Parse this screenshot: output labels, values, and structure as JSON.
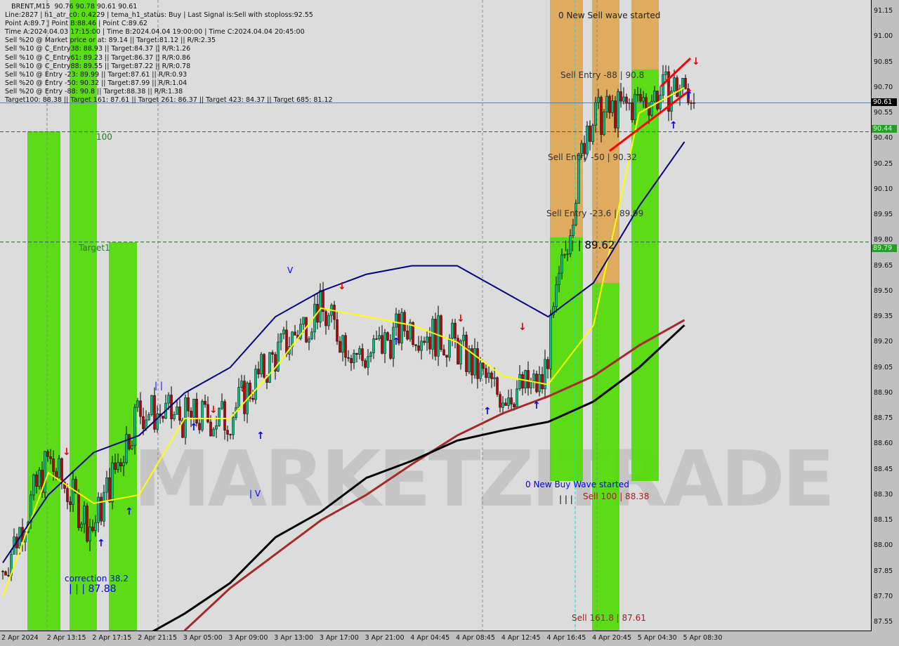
{
  "header": {
    "symbol": "BRENT,M15",
    "ohlc": "90.76 90.78 90.61 90.61"
  },
  "info_lines": [
    "Line:2827 | h1_atr_c0: 0.4229 | tema_h1_status: Buy | Last Signal is:Sell with stoploss:92.55",
    "Point A:89.7 | Point B:88.46 | Point C:89.62",
    "Time A:2024.04.03 17:15:00 | Time B:2024.04.04 19:00:00 | Time C:2024.04.04 20:45:00",
    "Sell %20 @ Market price or at: 89.14 || Target:81.12 || R/R:2.35",
    "Sell %10 @ C_Entry38: 88.93 || Target:84.37 || R/R:1.26",
    "Sell %10 @ C_Entry61: 89.23 || Target:86.37 || R/R:0.86",
    "Sell %10 @ C_Entry88: 89.55 || Target:87.22 || R/R:0.78",
    "Sell %10 @ Entry -23: 89.99 || Target:87.61 || R/R:0.93",
    "Sell %20 @ Entry -50: 90.32 || Target:87.99 || R/R:1.04",
    "Sell %20 @ Entry -88: 90.8 || Target:88.38 || R/R:1.38",
    "Target100: 88.38 || Target 161: 87.61 || Target 261: 86.37 || Target 423: 84.37 || Target 685: 81.12"
  ],
  "annotations": {
    "new_sell": "0 New Sell wave started",
    "sell_entry_88": "Sell Entry -88 | 90.8",
    "sell_entry_50": "Sell Entry -50 | 90.32",
    "sell_entry_23": "Sell Entry -23.6 | 89.99",
    "point_c": "| | | 89.62",
    "new_buy": "0 New Buy Wave started",
    "sell_100": "Sell 100 | 88.38",
    "sell_161": "Sell 161.8 | 87.61",
    "marker_100": "100",
    "target1": "Target1",
    "correction": "correction 38.2",
    "point_b": "| | | 87.88",
    "bars": "| | |",
    "v1": "V",
    "v2": "| V",
    "bars2": "| |"
  },
  "watermark": "MARKETZITRADE",
  "current_price": "90.61",
  "level_tags": [
    "90.44",
    "89.79"
  ],
  "colors": {
    "bull": "#00c080",
    "bear": "#c00000",
    "ema_fast": "#ffff00",
    "ema_mid": "#000080",
    "ma_brown": "#a52a2a",
    "ma_black": "#000000",
    "zone_green": "#4cdc00",
    "zone_orange": "#e0a040"
  },
  "chart_data": {
    "type": "candlestick",
    "x_ticks": [
      "2 Apr 2024",
      "2 Apr 13:15",
      "2 Apr 17:15",
      "2 Apr 21:15",
      "3 Apr 05:00",
      "3 Apr 09:00",
      "3 Apr 13:00",
      "3 Apr 17:00",
      "3 Apr 21:00",
      "4 Apr 04:45",
      "4 Apr 08:45",
      "4 Apr 12:45",
      "4 Apr 16:45",
      "4 Apr 20:45",
      "5 Apr 04:30",
      "5 Apr 08:30"
    ],
    "y_ticks": [
      "91.15",
      "91.00",
      "90.85",
      "90.70",
      "90.55",
      "90.40",
      "90.25",
      "90.10",
      "89.95",
      "89.80",
      "89.65",
      "89.50",
      "89.35",
      "89.20",
      "89.05",
      "88.90",
      "88.75",
      "88.60",
      "88.45",
      "88.30",
      "88.15",
      "88.00",
      "87.85",
      "87.70",
      "87.55"
    ],
    "ylim": [
      87.5,
      91.2
    ],
    "close_at_ticks": [
      87.85,
      88.5,
      88.1,
      88.8,
      88.75,
      88.75,
      89.1,
      89.4,
      89.1,
      89.3,
      89.2,
      88.9,
      88.95,
      90.5,
      90.6,
      90.7
    ],
    "last_close": 90.61,
    "series": [
      {
        "key": "yellow",
        "values": [
          87.7,
          88.43,
          88.25,
          88.3,
          88.75,
          88.75,
          89.05,
          89.4,
          89.35,
          89.3,
          89.2,
          89.0,
          88.95,
          89.3,
          90.55,
          90.7
        ]
      },
      {
        "key": "navy",
        "values": [
          87.9,
          88.3,
          88.55,
          88.65,
          88.9,
          89.05,
          89.35,
          89.5,
          89.6,
          89.65,
          89.65,
          89.5,
          89.35,
          89.55,
          90.0,
          90.38
        ]
      },
      {
        "key": "brown",
        "values": [
          null,
          null,
          null,
          null,
          87.5,
          87.75,
          87.95,
          88.15,
          88.3,
          88.48,
          88.65,
          88.78,
          88.88,
          89.0,
          89.18,
          89.33
        ]
      },
      {
        "key": "black",
        "values": [
          null,
          null,
          null,
          87.45,
          87.6,
          87.78,
          88.05,
          88.2,
          88.4,
          88.5,
          88.62,
          88.68,
          88.73,
          88.85,
          89.05,
          89.3
        ]
      }
    ],
    "hlines": [
      90.61,
      90.44,
      89.79
    ]
  }
}
